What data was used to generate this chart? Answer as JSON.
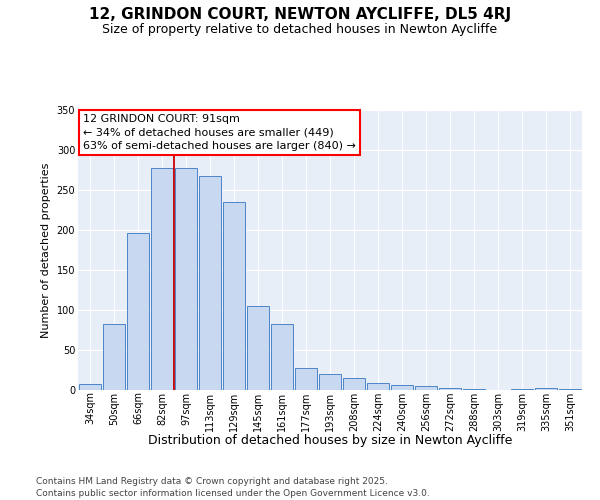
{
  "title1": "12, GRINDON COURT, NEWTON AYCLIFFE, DL5 4RJ",
  "title2": "Size of property relative to detached houses in Newton Aycliffe",
  "xlabel": "Distribution of detached houses by size in Newton Aycliffe",
  "ylabel": "Number of detached properties",
  "categories": [
    "34sqm",
    "50sqm",
    "66sqm",
    "82sqm",
    "97sqm",
    "113sqm",
    "129sqm",
    "145sqm",
    "161sqm",
    "177sqm",
    "193sqm",
    "208sqm",
    "224sqm",
    "240sqm",
    "256sqm",
    "272sqm",
    "288sqm",
    "303sqm",
    "319sqm",
    "335sqm",
    "351sqm"
  ],
  "values": [
    7,
    83,
    196,
    278,
    278,
    268,
    235,
    105,
    83,
    27,
    20,
    15,
    9,
    6,
    5,
    2,
    1,
    0,
    1,
    2,
    1
  ],
  "bar_color": "#c8d8f0",
  "bar_edge_color": "#4a86c8",
  "red_line_x": 4,
  "annotation_line1": "12 GRINDON COURT: 91sqm",
  "annotation_line2": "← 34% of detached houses are smaller (449)",
  "annotation_line3": "63% of semi-detached houses are larger (840) →",
  "red_line_color": "#cc0000",
  "footer1": "Contains HM Land Registry data © Crown copyright and database right 2025.",
  "footer2": "Contains public sector information licensed under the Open Government Licence v3.0.",
  "ylim": [
    0,
    350
  ],
  "yticks": [
    0,
    50,
    100,
    150,
    200,
    250,
    300,
    350
  ],
  "bg_color": "#ffffff",
  "plot_bg_color": "#e8eef8",
  "grid_color": "#ffffff",
  "title1_fontsize": 11,
  "title2_fontsize": 9,
  "xlabel_fontsize": 9,
  "ylabel_fontsize": 8,
  "tick_fontsize": 7,
  "ann_fontsize": 8,
  "footer_fontsize": 6.5
}
